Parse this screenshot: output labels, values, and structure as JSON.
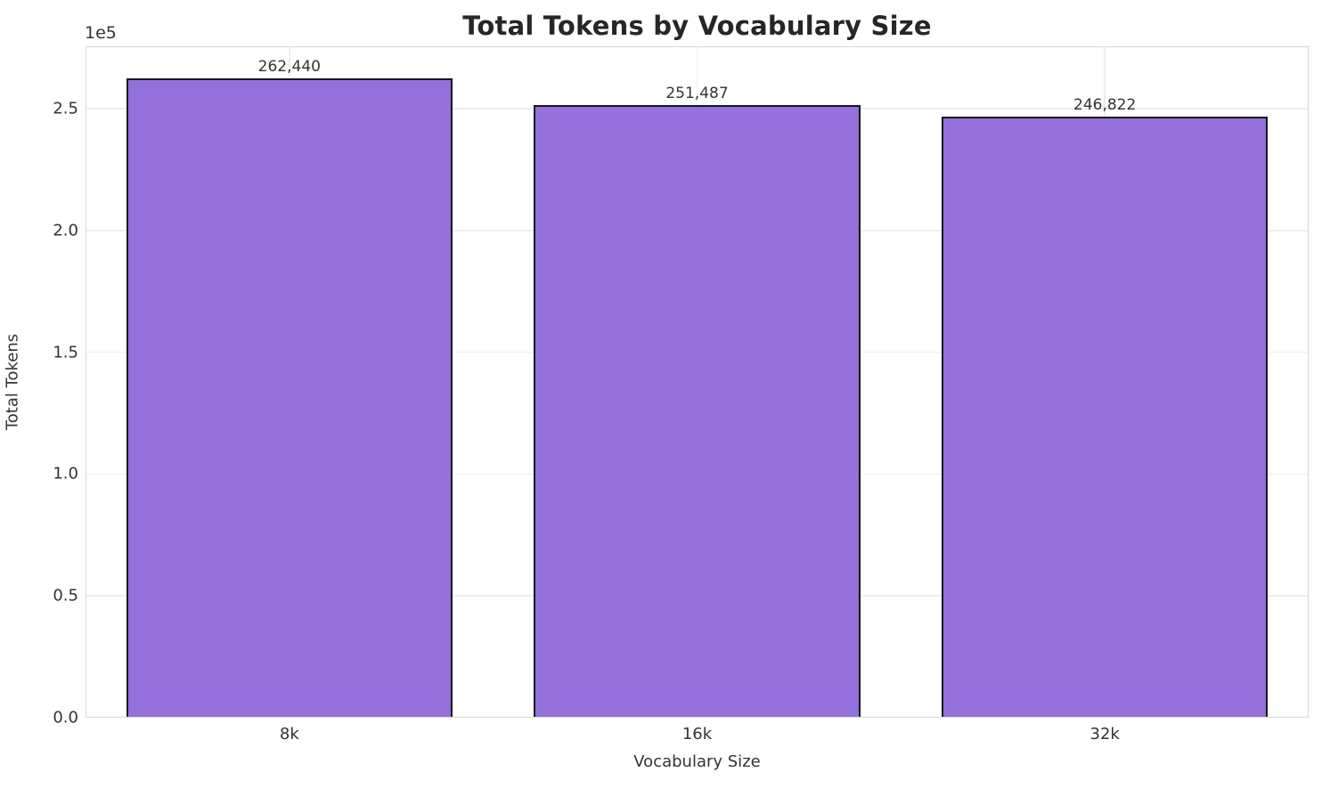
{
  "chart_data": {
    "type": "bar",
    "title": "Total Tokens by Vocabulary Size",
    "xlabel": "Vocabulary Size",
    "ylabel": "Total Tokens",
    "categories": [
      "8k",
      "16k",
      "32k"
    ],
    "values": [
      262440,
      251487,
      246822
    ],
    "bar_value_labels": [
      "262,440",
      "251,487",
      "246,822"
    ],
    "ylim": [
      0,
      275562
    ],
    "yticks": [
      0,
      50000,
      100000,
      150000,
      200000,
      250000
    ],
    "ytick_labels": [
      "0.0",
      "0.5",
      "1.0",
      "1.5",
      "2.0",
      "2.5"
    ],
    "offset_text": "1e5",
    "grid": true,
    "legend": null,
    "bar_width_fraction": 0.8,
    "colors": {
      "bar_fill": "#9370DB",
      "bar_edge": "#161616",
      "grid": "#eeeeee",
      "spine": "#d9d9d9",
      "title_text": "#262626",
      "tick_text": "#333333"
    }
  }
}
